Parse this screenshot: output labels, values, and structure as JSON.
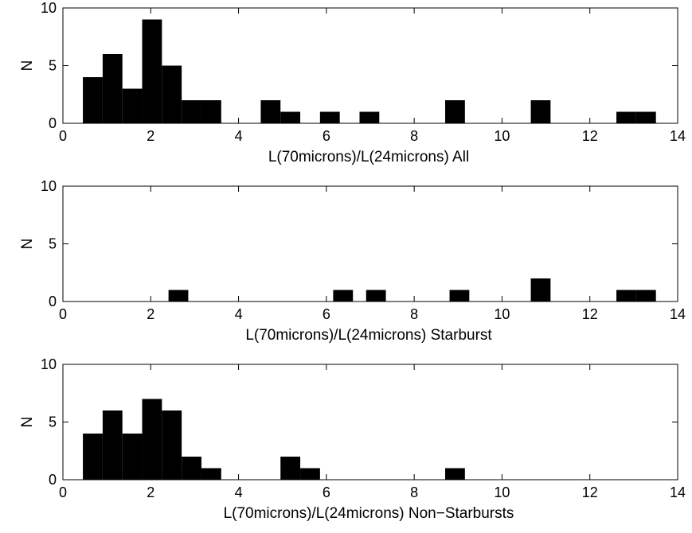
{
  "chart_data": [
    {
      "type": "bar",
      "xlabel": "L(70microns)/L(24microns) All",
      "ylabel": "N",
      "xlim": [
        0,
        14
      ],
      "ylim": [
        0,
        10
      ],
      "xticks": [
        "0",
        "2",
        "4",
        "6",
        "8",
        "10",
        "12",
        "14"
      ],
      "yticks": [
        "0",
        "5",
        "10"
      ],
      "bar_width": 0.45,
      "x": [
        0.68,
        1.13,
        1.58,
        2.03,
        2.48,
        2.93,
        3.38,
        4.73,
        5.18,
        6.08,
        6.98,
        8.93,
        10.88,
        12.83,
        13.28
      ],
      "values": [
        4,
        6,
        3,
        9,
        5,
        2,
        2,
        2,
        1,
        1,
        1,
        2,
        2,
        1,
        1
      ],
      "color": "#000000"
    },
    {
      "type": "bar",
      "xlabel": "L(70microns)/L(24microns) Starburst",
      "ylabel": "N",
      "xlim": [
        0,
        14
      ],
      "ylim": [
        0,
        10
      ],
      "xticks": [
        "0",
        "2",
        "4",
        "6",
        "8",
        "10",
        "12",
        "14"
      ],
      "yticks": [
        "0",
        "5",
        "10"
      ],
      "bar_width": 0.45,
      "x": [
        2.63,
        6.38,
        7.13,
        9.03,
        10.88,
        12.83,
        13.28
      ],
      "values": [
        1,
        1,
        1,
        1,
        2,
        1,
        1
      ],
      "color": "#000000"
    },
    {
      "type": "bar",
      "xlabel": "L(70microns)/L(24microns) Non−Starbursts",
      "ylabel": "N",
      "xlim": [
        0,
        14
      ],
      "ylim": [
        0,
        10
      ],
      "xticks": [
        "0",
        "2",
        "4",
        "6",
        "8",
        "10",
        "12",
        "14"
      ],
      "yticks": [
        "0",
        "5",
        "10"
      ],
      "bar_width": 0.45,
      "x": [
        0.68,
        1.13,
        1.58,
        2.03,
        2.48,
        2.93,
        3.38,
        5.18,
        5.63,
        8.93
      ],
      "values": [
        4,
        6,
        4,
        7,
        6,
        2,
        1,
        2,
        1,
        1
      ],
      "color": "#000000"
    }
  ]
}
